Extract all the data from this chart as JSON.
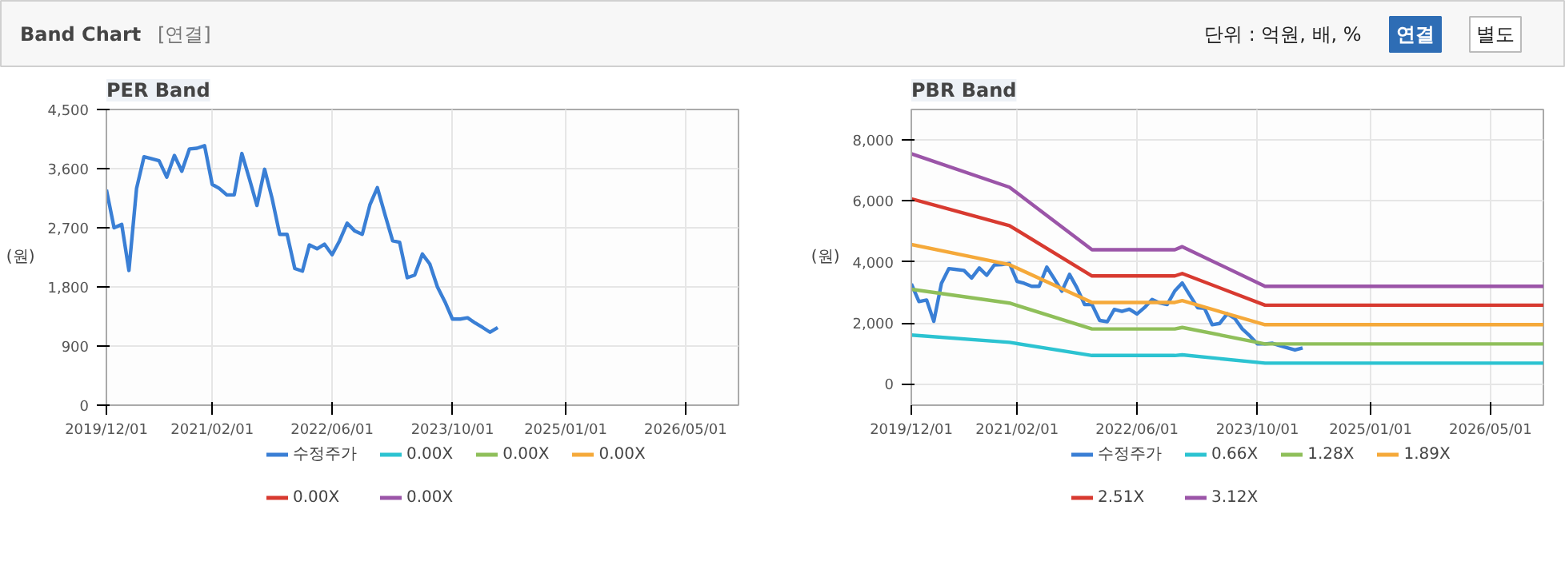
{
  "chart_data": [
    {
      "type": "other",
      "title": "Band Chart",
      "annotations": [
        "[연결]",
        "단위 : 억원, 배, %",
        "연결",
        "별도"
      ]
    },
    {
      "type": "line",
      "title": "PER Band",
      "ylabel": "(원)",
      "x": [
        "2019-12",
        "2020-01",
        "2020-02",
        "2020-03",
        "2020-04",
        "2020-05",
        "2020-06",
        "2020-07",
        "2020-08",
        "2020-09",
        "2020-10",
        "2020-11",
        "2020-12",
        "2021-01",
        "2021-02",
        "2021-03",
        "2021-04",
        "2021-05",
        "2021-06",
        "2021-07",
        "2021-08",
        "2021-09",
        "2021-10",
        "2021-11",
        "2021-12",
        "2022-01",
        "2022-02",
        "2022-03",
        "2022-04",
        "2022-05",
        "2022-06",
        "2022-07",
        "2022-08",
        "2022-09",
        "2022-10",
        "2022-11",
        "2022-12",
        "2023-01",
        "2023-02",
        "2023-03",
        "2023-04",
        "2023-05",
        "2023-06",
        "2023-07",
        "2023-08",
        "2023-09",
        "2023-10",
        "2023-11",
        "2023-12",
        "2024-01",
        "2024-02",
        "2024-03",
        "2024-04"
      ],
      "series": [
        {
          "name": "수정주가",
          "color": "#3a7fd5",
          "values": [
            3280,
            2700,
            2750,
            2050,
            3300,
            3780,
            3750,
            3720,
            3470,
            3800,
            3560,
            3900,
            3910,
            3950,
            3360,
            3300,
            3200,
            3200,
            3830,
            3450,
            3040,
            3590,
            3150,
            2600,
            2600,
            2080,
            2040,
            2440,
            2380,
            2450,
            2290,
            2500,
            2770,
            2650,
            2600,
            3050,
            3310,
            2900,
            2500,
            2480,
            1940,
            1980,
            2300,
            2150,
            1800,
            1570,
            1310,
            1310,
            1330,
            1250,
            1180,
            1110,
            1180
          ]
        },
        {
          "name": "0.00X",
          "color": "#2cc3d1",
          "values": [
            null,
            null,
            null,
            null,
            null,
            null,
            null,
            null,
            null,
            null,
            null,
            null,
            null,
            null,
            null,
            null,
            null,
            null,
            null,
            null,
            null,
            null,
            null,
            null,
            null,
            null,
            null,
            null,
            null,
            null,
            null,
            null,
            null,
            null,
            null,
            null,
            null,
            null,
            null,
            null,
            null,
            null,
            null,
            null,
            null,
            null,
            null,
            null,
            null,
            null,
            null,
            null,
            null
          ]
        },
        {
          "name": "0.00X",
          "color": "#8fbf5a",
          "values": [
            null,
            null,
            null,
            null,
            null,
            null,
            null,
            null,
            null,
            null,
            null,
            null,
            null,
            null,
            null,
            null,
            null,
            null,
            null,
            null,
            null,
            null,
            null,
            null,
            null,
            null,
            null,
            null,
            null,
            null,
            null,
            null,
            null,
            null,
            null,
            null,
            null,
            null,
            null,
            null,
            null,
            null,
            null,
            null,
            null,
            null,
            null,
            null,
            null,
            null,
            null,
            null,
            null
          ]
        },
        {
          "name": "0.00X",
          "color": "#f5a93a",
          "values": [
            null,
            null,
            null,
            null,
            null,
            null,
            null,
            null,
            null,
            null,
            null,
            null,
            null,
            null,
            null,
            null,
            null,
            null,
            null,
            null,
            null,
            null,
            null,
            null,
            null,
            null,
            null,
            null,
            null,
            null,
            null,
            null,
            null,
            null,
            null,
            null,
            null,
            null,
            null,
            null,
            null,
            null,
            null,
            null,
            null,
            null,
            null,
            null,
            null,
            null,
            null,
            null,
            null
          ]
        },
        {
          "name": "0.00X",
          "color": "#d83a30",
          "values": [
            null,
            null,
            null,
            null,
            null,
            null,
            null,
            null,
            null,
            null,
            null,
            null,
            null,
            null,
            null,
            null,
            null,
            null,
            null,
            null,
            null,
            null,
            null,
            null,
            null,
            null,
            null,
            null,
            null,
            null,
            null,
            null,
            null,
            null,
            null,
            null,
            null,
            null,
            null,
            null,
            null,
            null,
            null,
            null,
            null,
            null,
            null,
            null,
            null,
            null,
            null,
            null,
            null
          ]
        },
        {
          "name": "0.00X",
          "color": "#9b55a8",
          "values": [
            null,
            null,
            null,
            null,
            null,
            null,
            null,
            null,
            null,
            null,
            null,
            null,
            null,
            null,
            null,
            null,
            null,
            null,
            null,
            null,
            null,
            null,
            null,
            null,
            null,
            null,
            null,
            null,
            null,
            null,
            null,
            null,
            null,
            null,
            null,
            null,
            null,
            null,
            null,
            null,
            null,
            null,
            null,
            null,
            null,
            null,
            null,
            null,
            null,
            null,
            null,
            null,
            null
          ]
        }
      ],
      "xlim": [
        "2019-12-01",
        "2026-12-01"
      ],
      "xticks": [
        {
          "value": "2019-12-01",
          "label": "2019/12/01"
        },
        {
          "value": "2021-02-01",
          "label": "2021/02/01"
        },
        {
          "value": "2022-06-01",
          "label": "2022/06/01"
        },
        {
          "value": "2023-10-01",
          "label": "2023/10/01"
        },
        {
          "value": "2025-01-01",
          "label": "2025/01/01"
        },
        {
          "value": "2026-05-01",
          "label": "2026/05/01"
        }
      ],
      "ylim": [
        0,
        4500
      ],
      "yticks": [
        0,
        900,
        {
          "value": 1800,
          "label": "1,800"
        },
        {
          "value": 2700,
          "label": "2,700"
        },
        {
          "value": 3600,
          "label": "3,600"
        },
        {
          "value": 4500,
          "label": "4,500"
        }
      ],
      "grid": true,
      "legend": "bottom"
    },
    {
      "type": "line",
      "title": "PBR Band",
      "ylabel": "(원)",
      "x": [
        "2019-12",
        "2020-01",
        "2020-02",
        "2020-03",
        "2020-04",
        "2020-05",
        "2020-06",
        "2020-07",
        "2020-08",
        "2020-09",
        "2020-10",
        "2020-11",
        "2020-12",
        "2021-01",
        "2021-02",
        "2021-03",
        "2021-04",
        "2021-05",
        "2021-06",
        "2021-07",
        "2021-08",
        "2021-09",
        "2021-10",
        "2021-11",
        "2021-12",
        "2022-01",
        "2022-02",
        "2022-03",
        "2022-04",
        "2022-05",
        "2022-06",
        "2022-07",
        "2022-08",
        "2022-09",
        "2022-10",
        "2022-11",
        "2022-12",
        "2023-01",
        "2023-02",
        "2023-03",
        "2023-04",
        "2023-05",
        "2023-06",
        "2023-07",
        "2023-08",
        "2023-09",
        "2023-10",
        "2023-11",
        "2023-12",
        "2024-01",
        "2024-02",
        "2024-03",
        "2024-04"
      ],
      "series": [
        {
          "name": "수정주가",
          "color": "#3a7fd5",
          "values": [
            3280,
            2700,
            2750,
            2050,
            3300,
            3780,
            3750,
            3720,
            3470,
            3800,
            3560,
            3900,
            3910,
            3950,
            3360,
            3300,
            3200,
            3200,
            3830,
            3450,
            3040,
            3590,
            3150,
            2600,
            2600,
            2080,
            2040,
            2440,
            2380,
            2450,
            2290,
            2500,
            2770,
            2650,
            2600,
            3050,
            3310,
            2900,
            2500,
            2480,
            1940,
            1980,
            2300,
            2150,
            1800,
            1570,
            1310,
            1310,
            1330,
            1250,
            1180,
            1110,
            1180
          ]
        },
        {
          "name": "0.66X",
          "color": "#2cc3d1",
          "x": [
            "2019-12",
            "2021-01",
            "2021-12",
            "2022-11",
            "2022-12",
            "2023-11",
            "2026-12"
          ],
          "values": [
            1600,
            1360,
            930,
            930,
            950,
            680,
            680
          ]
        },
        {
          "name": "1.28X",
          "color": "#8fbf5a",
          "x": [
            "2019-12",
            "2021-01",
            "2021-12",
            "2022-11",
            "2022-12",
            "2023-11",
            "2026-12"
          ],
          "values": [
            3100,
            2650,
            1800,
            1800,
            1850,
            1310,
            1310
          ]
        },
        {
          "name": "1.89X",
          "color": "#f5a93a",
          "x": [
            "2019-12",
            "2021-01",
            "2021-12",
            "2022-11",
            "2022-12",
            "2023-11",
            "2026-12"
          ],
          "values": [
            4570,
            3910,
            2670,
            2670,
            2730,
            1940,
            1940
          ]
        },
        {
          "name": "2.51X",
          "color": "#d83a30",
          "x": [
            "2019-12",
            "2021-01",
            "2021-12",
            "2022-11",
            "2022-12",
            "2023-11",
            "2026-12"
          ],
          "values": [
            6070,
            5190,
            3540,
            3540,
            3620,
            2580,
            2580
          ]
        },
        {
          "name": "3.12X",
          "color": "#9b55a8",
          "x": [
            "2019-12",
            "2021-01",
            "2021-12",
            "2022-11",
            "2022-12",
            "2023-11",
            "2026-12"
          ],
          "values": [
            7550,
            6450,
            4400,
            4400,
            4500,
            3200,
            3200
          ]
        }
      ],
      "xlim": [
        "2019-12-01",
        "2026-12-01"
      ],
      "xticks": [
        {
          "value": "2019-12-01",
          "label": "2019/12/01"
        },
        {
          "value": "2021-02-01",
          "label": "2021/02/01"
        },
        {
          "value": "2022-06-01",
          "label": "2022/06/01"
        },
        {
          "value": "2023-10-01",
          "label": "2023/10/01"
        },
        {
          "value": "2025-01-01",
          "label": "2025/01/01"
        },
        {
          "value": "2026-05-01",
          "label": "2026/05/01"
        }
      ],
      "ylim": [
        -700,
        9000
      ],
      "yticks": [
        0,
        {
          "value": 2000,
          "label": "2,000"
        },
        {
          "value": 4000,
          "label": "4,000"
        },
        {
          "value": 6000,
          "label": "6,000"
        },
        {
          "value": 8000,
          "label": "8,000"
        }
      ],
      "grid": true,
      "legend": "bottom"
    }
  ]
}
